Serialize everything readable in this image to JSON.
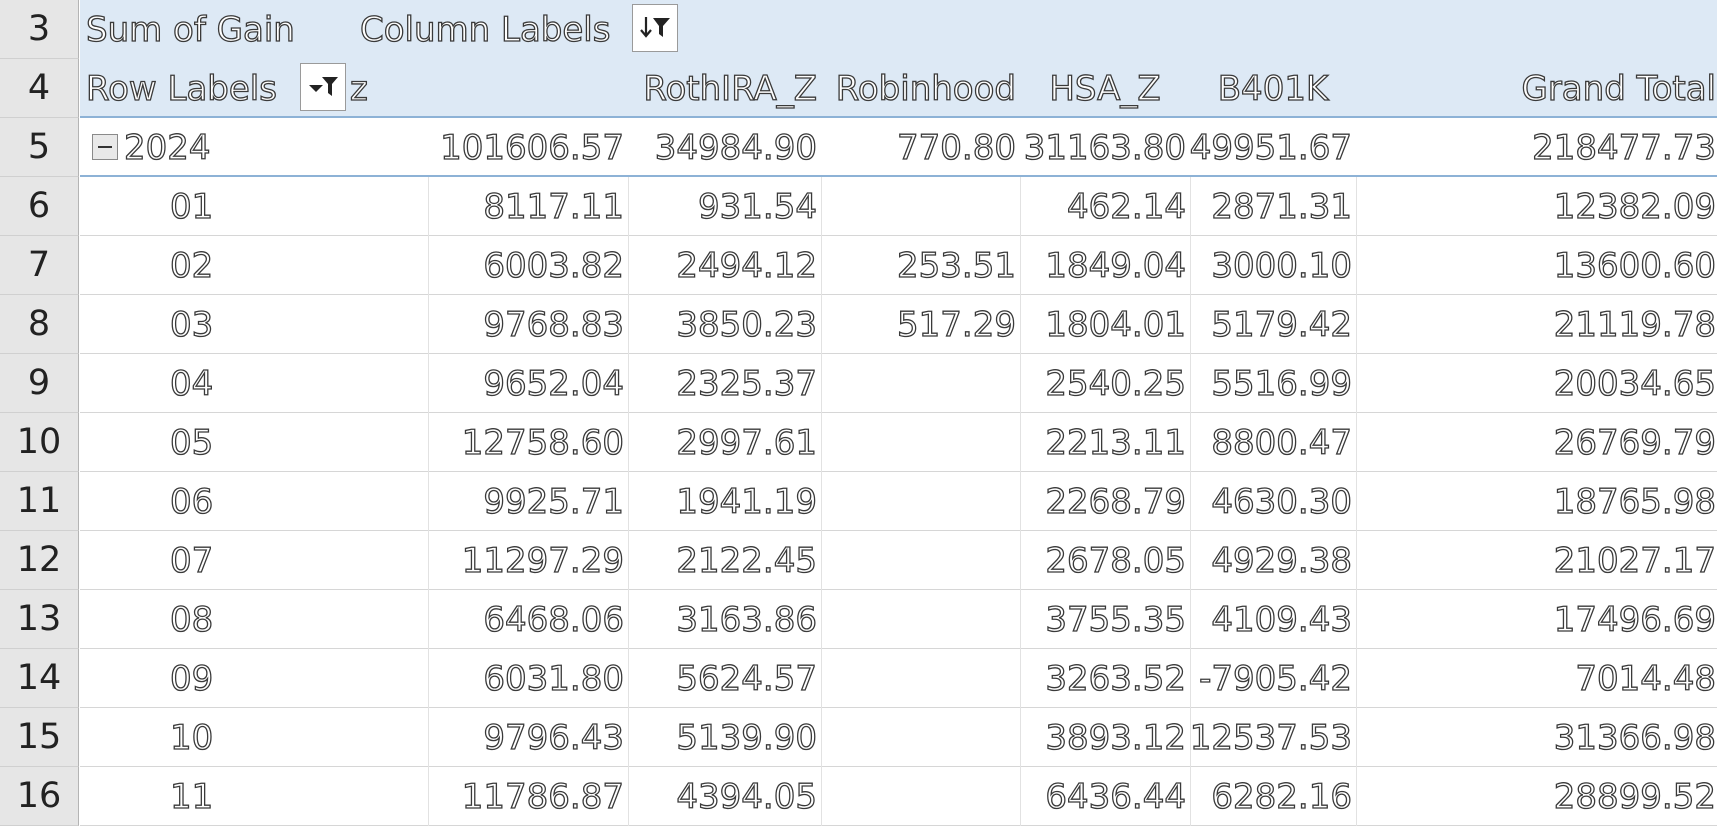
{
  "rows": [
    {
      "num": "3"
    },
    {
      "num": "4"
    },
    {
      "num": "5"
    },
    {
      "num": "6"
    },
    {
      "num": "7"
    },
    {
      "num": "8"
    },
    {
      "num": "9"
    },
    {
      "num": "10"
    },
    {
      "num": "11"
    },
    {
      "num": "12"
    },
    {
      "num": "13"
    },
    {
      "num": "14"
    },
    {
      "num": "15"
    },
    {
      "num": "16"
    }
  ],
  "pivot": {
    "values_label": "Sum of Gain",
    "column_labels": "Column Labels",
    "row_labels": "Row Labels",
    "columns": [
      "z",
      "RothIRA_Z",
      "Robinhood",
      "HSA_Z",
      "B401K",
      "Grand Total"
    ],
    "year": {
      "label": "2024",
      "values": [
        "101606.57",
        "34984.90",
        "770.80",
        "31163.80",
        "49951.67",
        "218477.73"
      ]
    },
    "months": [
      {
        "label": "01",
        "values": [
          "8117.11",
          "931.54",
          "",
          "462.14",
          "2871.31",
          "12382.09"
        ]
      },
      {
        "label": "02",
        "values": [
          "6003.82",
          "2494.12",
          "253.51",
          "1849.04",
          "3000.10",
          "13600.60"
        ]
      },
      {
        "label": "03",
        "values": [
          "9768.83",
          "3850.23",
          "517.29",
          "1804.01",
          "5179.42",
          "21119.78"
        ]
      },
      {
        "label": "04",
        "values": [
          "9652.04",
          "2325.37",
          "",
          "2540.25",
          "5516.99",
          "20034.65"
        ]
      },
      {
        "label": "05",
        "values": [
          "12758.60",
          "2997.61",
          "",
          "2213.11",
          "8800.47",
          "26769.79"
        ]
      },
      {
        "label": "06",
        "values": [
          "9925.71",
          "1941.19",
          "",
          "2268.79",
          "4630.30",
          "18765.98"
        ]
      },
      {
        "label": "07",
        "values": [
          "11297.29",
          "2122.45",
          "",
          "2678.05",
          "4929.38",
          "21027.17"
        ]
      },
      {
        "label": "08",
        "values": [
          "6468.06",
          "3163.86",
          "",
          "3755.35",
          "4109.43",
          "17496.69"
        ]
      },
      {
        "label": "09",
        "values": [
          "6031.80",
          "5624.57",
          "",
          "3263.52",
          "-7905.42",
          "7014.48"
        ]
      },
      {
        "label": "10",
        "values": [
          "9796.43",
          "5139.90",
          "",
          "3893.12",
          "12537.53",
          "31366.98"
        ]
      },
      {
        "label": "11",
        "values": [
          "11786.87",
          "4394.05",
          "",
          "6436.44",
          "6282.16",
          "28899.52"
        ]
      }
    ]
  }
}
